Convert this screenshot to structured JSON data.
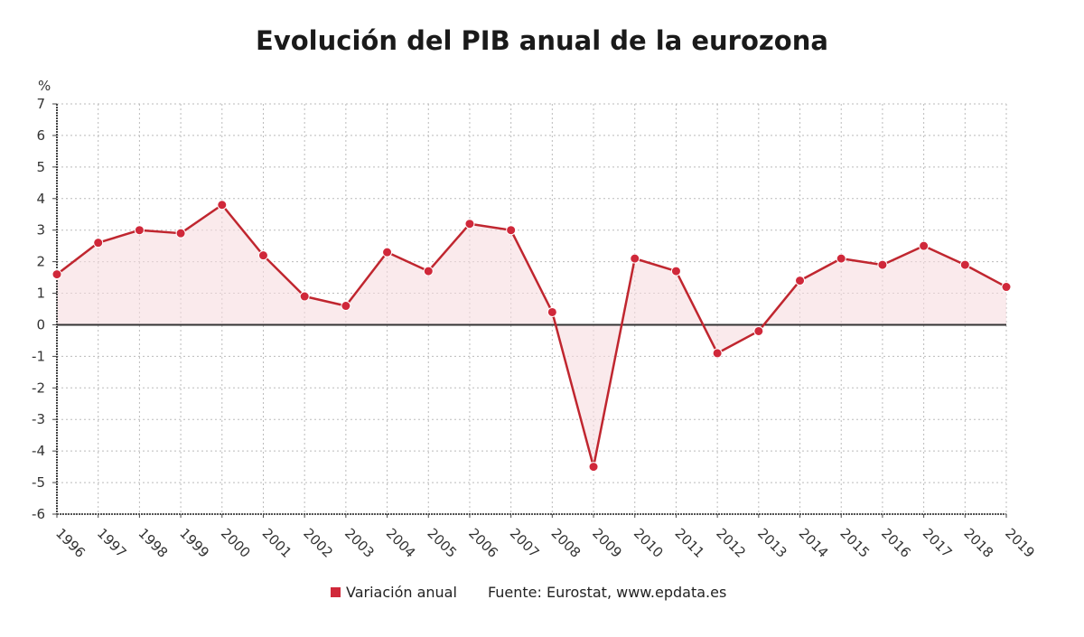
{
  "chart_data": {
    "type": "area",
    "title": "Evolución del PIB anual de la eurozona",
    "ylabel": "%",
    "xlabel": "",
    "ylim": [
      -6,
      7
    ],
    "yticks": [
      7,
      6,
      5,
      4,
      3,
      2,
      1,
      0,
      -1,
      -2,
      -3,
      -4,
      -5,
      -6
    ],
    "grid": true,
    "legend_position": "bottom",
    "categories": [
      "1996",
      "1997",
      "1998",
      "1999",
      "2000",
      "2001",
      "2002",
      "2003",
      "2004",
      "2005",
      "2006",
      "2007",
      "2008",
      "2009",
      "2010",
      "2011",
      "2012",
      "2013",
      "2014",
      "2015",
      "2016",
      "2017",
      "2018",
      "2019"
    ],
    "series": [
      {
        "name": "Variación anual",
        "color": "#c0262f",
        "values": [
          1.6,
          2.6,
          3.0,
          2.9,
          3.8,
          2.2,
          0.9,
          0.6,
          2.3,
          1.7,
          3.2,
          3.0,
          0.4,
          -4.5,
          2.1,
          1.7,
          -0.9,
          -0.2,
          1.4,
          2.1,
          1.9,
          2.5,
          1.9,
          1.2
        ]
      }
    ],
    "source": "Fuente: Eurostat, www.epdata.es"
  }
}
